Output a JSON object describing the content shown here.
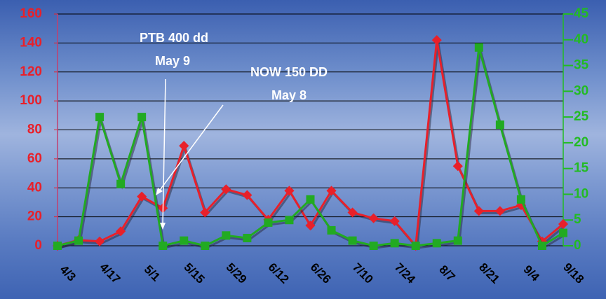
{
  "chart_data": {
    "type": "line",
    "categories": [
      "4/3",
      null,
      "4/17",
      null,
      "5/1",
      null,
      "5/15",
      null,
      "5/29",
      null,
      "6/12",
      null,
      "6/26",
      null,
      "7/10",
      null,
      "7/24",
      null,
      "8/7",
      null,
      "8/21",
      null,
      "9/4",
      null,
      "9/18"
    ],
    "series": [
      {
        "color": "#e8202a",
        "values": [
          0,
          4,
          3,
          10,
          34,
          26,
          69,
          23,
          39,
          35,
          18,
          38,
          14,
          38,
          23,
          19,
          17,
          0,
          142,
          55,
          24,
          24,
          28,
          3,
          15
        ]
      },
      {
        "color": "#22aa22",
        "axis": "y2",
        "values": [
          0,
          1,
          25,
          12,
          25,
          0,
          1,
          0,
          2,
          1.5,
          4.5,
          5,
          9,
          3,
          1,
          0,
          0.5,
          0,
          0.5,
          1,
          38.5,
          23.5,
          9,
          0,
          2.5
        ]
      }
    ],
    "ylim": [
      0,
      160
    ],
    "yticks": [
      0,
      20,
      40,
      60,
      80,
      100,
      120,
      140,
      160
    ],
    "y2lim": [
      0,
      45
    ],
    "y2ticks": [
      0,
      5,
      10,
      15,
      20,
      25,
      30,
      35,
      40,
      45
    ],
    "grid": true,
    "annotations": [
      "PTB 400 dd",
      "May 9",
      "NOW 150 DD",
      "May 8"
    ]
  }
}
